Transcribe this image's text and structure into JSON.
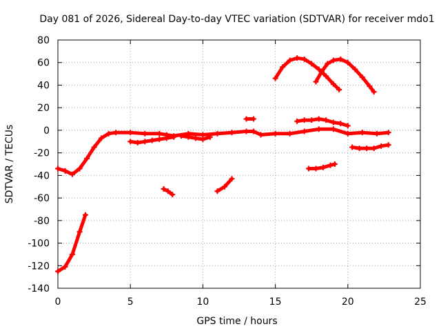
{
  "chart_data": {
    "type": "scatter",
    "title": "Day 081 of 2026, Sidereal Day-to-day VTEC variation (SDTVAR) for receiver mdo1",
    "xlabel": "GPS time / hours",
    "ylabel": "SDTVAR / TECUs",
    "xlim": [
      0,
      25
    ],
    "ylim": [
      -140,
      80
    ],
    "xticks": [
      0,
      5,
      10,
      15,
      20,
      25
    ],
    "yticks": [
      -140,
      -120,
      -100,
      -80,
      -60,
      -40,
      -20,
      0,
      20,
      40,
      60,
      80
    ],
    "grid": true,
    "legend": "none",
    "series": [
      {
        "name": "main-track",
        "color": "#ff0000",
        "x": [
          0,
          0.5,
          1.0,
          1.5,
          2.0,
          2.5,
          3.0,
          3.5,
          4.0,
          5.0,
          6.0,
          7.0,
          7.5,
          8.0,
          9.0,
          10.0,
          11.0,
          12.0,
          13.0,
          13.5,
          14.0,
          15.0,
          16.0,
          17.0,
          18.0,
          19.0,
          20.0,
          21.0,
          22.0,
          22.8
        ],
        "y": [
          -34,
          -36,
          -39,
          -34,
          -25,
          -15,
          -7,
          -3,
          -2,
          -2,
          -3,
          -3,
          -4,
          -5,
          -3,
          -4,
          -3,
          -2,
          -1,
          -1,
          -4,
          -3,
          -3,
          -1,
          1,
          1,
          -3,
          -2,
          -3,
          -2
        ]
      },
      {
        "name": "early-rise",
        "color": "#ff0000",
        "x": [
          0,
          0.5,
          1.0,
          1.5,
          1.9
        ],
        "y": [
          -125,
          -121,
          -110,
          -90,
          -75
        ]
      },
      {
        "name": "arc-1",
        "color": "#ff0000",
        "x": [
          15.0,
          15.5,
          16.0,
          16.5,
          17.0,
          17.5,
          18.0,
          18.5,
          19.0,
          19.4
        ],
        "y": [
          46,
          56,
          62,
          64,
          63,
          59,
          54,
          48,
          41,
          36
        ]
      },
      {
        "name": "arc-2",
        "color": "#ff0000",
        "x": [
          17.8,
          18.2,
          18.6,
          19.0,
          19.5,
          20.0,
          20.5,
          21.0,
          21.5,
          21.8
        ],
        "y": [
          43,
          52,
          59,
          62,
          63,
          60,
          54,
          47,
          39,
          34
        ]
      },
      {
        "name": "mid-high",
        "color": "#ff0000",
        "x": [
          16.5,
          17.0,
          17.5,
          18.0,
          18.5,
          19.0,
          19.5,
          20.0
        ],
        "y": [
          8,
          9,
          9,
          10,
          9,
          7,
          6,
          4
        ]
      },
      {
        "name": "mid-low-a",
        "color": "#ff0000",
        "x": [
          5.0,
          5.5,
          6.0,
          6.5,
          7.0,
          7.5,
          8.0
        ],
        "y": [
          -10,
          -11,
          -10,
          -9,
          -8,
          -7,
          -6
        ]
      },
      {
        "name": "mid-low-b",
        "color": "#ff0000",
        "x": [
          8.5,
          9.0,
          9.5,
          10.0,
          10.5
        ],
        "y": [
          -5,
          -6,
          -7,
          -8,
          -6
        ]
      },
      {
        "name": "late-low",
        "color": "#ff0000",
        "x": [
          20.3,
          20.8,
          21.3,
          21.8,
          22.3,
          22.8
        ],
        "y": [
          -15,
          -16,
          -16,
          -16,
          -14,
          -13
        ]
      },
      {
        "name": "seg-neg52",
        "color": "#ff0000",
        "x": [
          7.3,
          7.6,
          7.9
        ],
        "y": [
          -52,
          -54,
          -57
        ]
      },
      {
        "name": "seg-neg45",
        "color": "#ff0000",
        "x": [
          11.0,
          11.5,
          12.0
        ],
        "y": [
          -54,
          -50,
          -43
        ]
      },
      {
        "name": "seg-neg33",
        "color": "#ff0000",
        "x": [
          17.3,
          17.8,
          18.3,
          18.8,
          19.1
        ],
        "y": [
          -34,
          -34,
          -33,
          -31,
          -30
        ]
      },
      {
        "name": "seg-pos10",
        "color": "#ff0000",
        "x": [
          13.0,
          13.5
        ],
        "y": [
          10,
          10
        ]
      }
    ]
  }
}
